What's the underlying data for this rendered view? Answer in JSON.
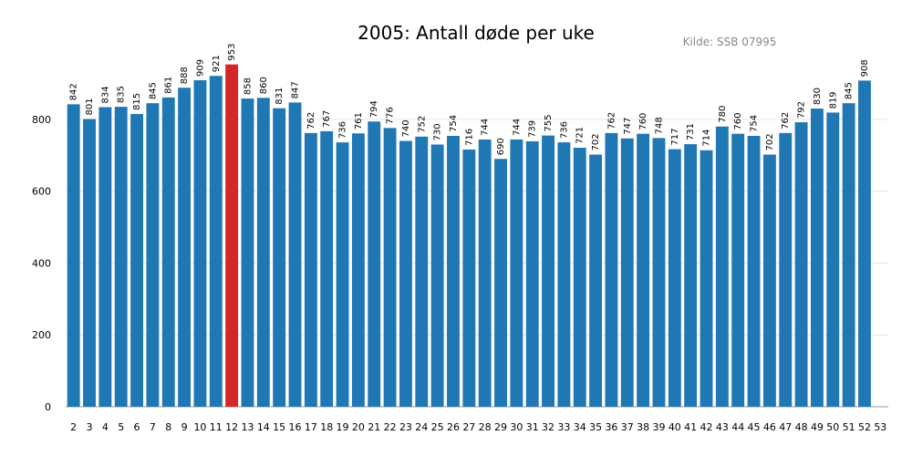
{
  "chart_data": {
    "type": "bar",
    "title": "2005: Antall døde per uke",
    "source": "Kilde: SSB 07995",
    "xlabel": "",
    "ylabel": "",
    "ylim": [
      0,
      980
    ],
    "yticks": [
      0,
      200,
      400,
      600,
      800
    ],
    "xlim": [
      1.5,
      53.5
    ],
    "xticks": [
      "2",
      "3",
      "4",
      "5",
      "6",
      "7",
      "8",
      "9",
      "10",
      "11",
      "12",
      "13",
      "14",
      "15",
      "16",
      "17",
      "18",
      "19",
      "20",
      "21",
      "22",
      "23",
      "24",
      "25",
      "26",
      "27",
      "28",
      "29",
      "30",
      "31",
      "32",
      "33",
      "34",
      "35",
      "36",
      "37",
      "38",
      "39",
      "40",
      "41",
      "42",
      "43",
      "44",
      "45",
      "46",
      "47",
      "48",
      "49",
      "50",
      "51",
      "52",
      "53"
    ],
    "grid": true,
    "categories": [
      2,
      3,
      4,
      5,
      6,
      7,
      8,
      9,
      10,
      11,
      12,
      13,
      14,
      15,
      16,
      17,
      18,
      19,
      20,
      21,
      22,
      23,
      24,
      25,
      26,
      27,
      28,
      29,
      30,
      31,
      32,
      33,
      34,
      35,
      36,
      37,
      38,
      39,
      40,
      41,
      42,
      43,
      44,
      45,
      46,
      47,
      48,
      49,
      50,
      51,
      52
    ],
    "values": [
      842,
      801,
      834,
      835,
      815,
      845,
      861,
      888,
      909,
      921,
      953,
      858,
      860,
      831,
      847,
      762,
      767,
      736,
      761,
      794,
      776,
      740,
      752,
      730,
      754,
      716,
      744,
      690,
      744,
      739,
      755,
      736,
      721,
      702,
      762,
      747,
      760,
      748,
      717,
      731,
      714,
      780,
      760,
      754,
      702,
      762,
      792,
      830,
      819,
      845,
      908
    ],
    "colors": {
      "default": "#1f77b4",
      "highlight": "#d62728",
      "grid": "#e6e6e6",
      "axis": "#cccccc"
    },
    "highlight_category": 12
  }
}
